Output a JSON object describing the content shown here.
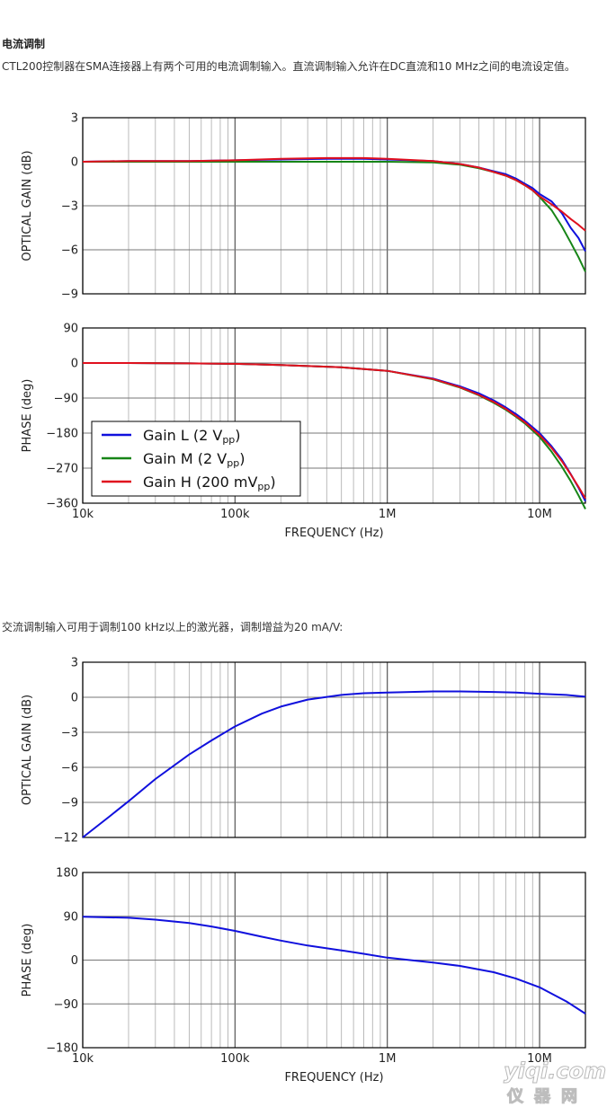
{
  "article": {
    "heading": "电流调制",
    "para1": "CTL200控制器在SMA连接器上有两个可用的电流调制输入。直流调制输入允许在DC直流和10 MHz之间的电流设定值。",
    "para2": "交流调制输入可用于调制100 kHz以上的激光器，调制增益为20 mA/V:"
  },
  "watermark": {
    "line1": "yiqi.com",
    "line2": "仪器网"
  },
  "colors": {
    "gain_l": "#1010dd",
    "gain_m": "#178517",
    "gain_h": "#e0101e",
    "grid": "#000000"
  },
  "chart_data": [
    {
      "type": "line",
      "x_scale": "log",
      "xlim": [
        10000,
        20000000
      ],
      "ylim": [
        -9,
        3
      ],
      "y_ticks": [
        -9,
        -6,
        -3,
        0,
        3
      ],
      "y_tick_labels": [
        "−9",
        "−6",
        "−3",
        "0",
        "3"
      ],
      "ylabel": "OPTICAL GAIN (dB)",
      "grid": true,
      "series": [
        {
          "name": "Gain L",
          "color": "#1010dd",
          "x": [
            10000,
            20000,
            50000,
            100000,
            200000,
            400000,
            700000,
            1000000,
            2000000,
            3000000,
            4000000,
            5000000,
            6000000,
            7000000,
            8000000,
            9000000,
            10000000,
            12000000,
            14000000,
            16000000,
            18000000,
            20000000
          ],
          "y": [
            0,
            0.05,
            0.05,
            0.1,
            0.15,
            0.2,
            0.2,
            0.15,
            0.05,
            -0.15,
            -0.4,
            -0.65,
            -0.85,
            -1.15,
            -1.5,
            -1.8,
            -2.2,
            -2.7,
            -3.5,
            -4.5,
            -5.2,
            -6.1
          ]
        },
        {
          "name": "Gain M",
          "color": "#178517",
          "x": [
            10000,
            20000,
            50000,
            100000,
            200000,
            400000,
            700000,
            1000000,
            2000000,
            3000000,
            4000000,
            5000000,
            6000000,
            7000000,
            8000000,
            9000000,
            10000000,
            12000000,
            14000000,
            16000000,
            18000000,
            20000000
          ],
          "y": [
            0,
            0,
            0,
            0,
            0,
            0,
            0,
            0,
            -0.05,
            -0.2,
            -0.45,
            -0.7,
            -0.95,
            -1.25,
            -1.6,
            -1.95,
            -2.4,
            -3.3,
            -4.4,
            -5.5,
            -6.5,
            -7.5
          ]
        },
        {
          "name": "Gain H",
          "color": "#e0101e",
          "x": [
            10000,
            20000,
            50000,
            100000,
            200000,
            400000,
            700000,
            1000000,
            2000000,
            3000000,
            4000000,
            5000000,
            6000000,
            7000000,
            8000000,
            9000000,
            10000000,
            12000000,
            14000000,
            16000000,
            18000000,
            20000000
          ],
          "y": [
            0,
            0.05,
            0.05,
            0.1,
            0.2,
            0.25,
            0.25,
            0.2,
            0.05,
            -0.15,
            -0.4,
            -0.7,
            -0.95,
            -1.25,
            -1.6,
            -1.95,
            -2.35,
            -2.9,
            -3.4,
            -3.9,
            -4.3,
            -4.7
          ]
        }
      ]
    },
    {
      "type": "line",
      "x_scale": "log",
      "xlim": [
        10000,
        20000000
      ],
      "ylim": [
        -360,
        90
      ],
      "y_ticks": [
        -360,
        -270,
        -180,
        -90,
        0,
        90
      ],
      "y_tick_labels": [
        "−360",
        "−270",
        "−180",
        "−90",
        "0",
        "90"
      ],
      "x_ticks": [
        10000,
        100000,
        1000000,
        10000000
      ],
      "x_tick_labels": [
        "10k",
        "100k",
        "1M",
        "10M"
      ],
      "xlabel": "FREQUENCY (Hz)",
      "ylabel": "PHASE (deg)",
      "grid": true,
      "legend": {
        "placement": "lower-left",
        "entries": [
          {
            "name": "Gain L",
            "text": "Gain L (2 V",
            "sub": "pp",
            "close": ")"
          },
          {
            "name": "Gain M",
            "text": "Gain M (2 V",
            "sub": "pp",
            "close": ")"
          },
          {
            "name": "Gain H",
            "text": "Gain H (200 mV",
            "sub": "pp",
            "close": ")"
          }
        ]
      },
      "series": [
        {
          "name": "Gain L",
          "color": "#1010dd",
          "x": [
            10000,
            20000,
            50000,
            100000,
            200000,
            500000,
            1000000,
            2000000,
            3000000,
            4000000,
            5000000,
            6000000,
            7000000,
            8000000,
            10000000,
            12000000,
            14000000,
            16000000,
            18000000,
            20000000
          ],
          "y": [
            0,
            0,
            -1,
            -2,
            -5,
            -11,
            -20,
            -40,
            -60,
            -78,
            -96,
            -114,
            -131,
            -148,
            -180,
            -214,
            -248,
            -285,
            -320,
            -355
          ]
        },
        {
          "name": "Gain M",
          "color": "#178517",
          "x": [
            10000,
            20000,
            50000,
            100000,
            200000,
            500000,
            1000000,
            2000000,
            3000000,
            4000000,
            5000000,
            6000000,
            7000000,
            8000000,
            10000000,
            12000000,
            14000000,
            16000000,
            18000000,
            20000000
          ],
          "y": [
            0,
            0,
            -1,
            -2,
            -5,
            -11,
            -20,
            -42,
            -63,
            -83,
            -102,
            -120,
            -138,
            -155,
            -190,
            -228,
            -266,
            -303,
            -340,
            -375
          ]
        },
        {
          "name": "Gain H",
          "color": "#e0101e",
          "x": [
            10000,
            20000,
            50000,
            100000,
            200000,
            500000,
            1000000,
            2000000,
            3000000,
            4000000,
            5000000,
            6000000,
            7000000,
            8000000,
            10000000,
            12000000,
            14000000,
            16000000,
            18000000,
            20000000
          ],
          "y": [
            0,
            0,
            -1,
            -2,
            -5,
            -11,
            -20,
            -41,
            -62,
            -82,
            -100,
            -118,
            -136,
            -152,
            -185,
            -218,
            -252,
            -286,
            -318,
            -348
          ]
        }
      ]
    },
    {
      "type": "line",
      "x_scale": "log",
      "xlim": [
        10000,
        20000000
      ],
      "ylim": [
        -12,
        3
      ],
      "y_ticks": [
        -12,
        -9,
        -6,
        -3,
        0,
        3
      ],
      "y_tick_labels": [
        "−12",
        "−9",
        "−6",
        "−3",
        "0",
        "3"
      ],
      "ylabel": "OPTICAL GAIN (dB)",
      "grid": true,
      "series": [
        {
          "name": "",
          "color": "#1010dd",
          "x": [
            10000,
            15000,
            20000,
            30000,
            50000,
            70000,
            100000,
            150000,
            200000,
            300000,
            500000,
            700000,
            1000000,
            2000000,
            3000000,
            5000000,
            7000000,
            10000000,
            15000000,
            20000000
          ],
          "y": [
            -12,
            -10.2,
            -8.9,
            -7.0,
            -4.9,
            -3.7,
            -2.5,
            -1.4,
            -0.8,
            -0.2,
            0.2,
            0.35,
            0.4,
            0.5,
            0.5,
            0.45,
            0.4,
            0.3,
            0.2,
            0.05
          ]
        }
      ]
    },
    {
      "type": "line",
      "x_scale": "log",
      "xlim": [
        10000,
        20000000
      ],
      "ylim": [
        -180,
        180
      ],
      "y_ticks": [
        -180,
        -90,
        0,
        90,
        180
      ],
      "y_tick_labels": [
        "−180",
        "−90",
        "0",
        "90",
        "180"
      ],
      "x_ticks": [
        10000,
        100000,
        1000000,
        10000000
      ],
      "x_tick_labels": [
        "10k",
        "100k",
        "1M",
        "10M"
      ],
      "xlabel": "FREQUENCY (Hz)",
      "ylabel": "PHASE (deg)",
      "grid": true,
      "series": [
        {
          "name": "",
          "color": "#1010dd",
          "x": [
            10000,
            20000,
            30000,
            50000,
            70000,
            100000,
            150000,
            200000,
            300000,
            500000,
            700000,
            1000000,
            1500000,
            2000000,
            3000000,
            5000000,
            7000000,
            10000000,
            15000000,
            20000000
          ],
          "y": [
            89,
            87,
            83,
            76,
            69,
            60,
            48,
            40,
            30,
            20,
            13,
            5,
            -1,
            -5,
            -12,
            -25,
            -38,
            -56,
            -85,
            -110
          ]
        }
      ]
    }
  ]
}
